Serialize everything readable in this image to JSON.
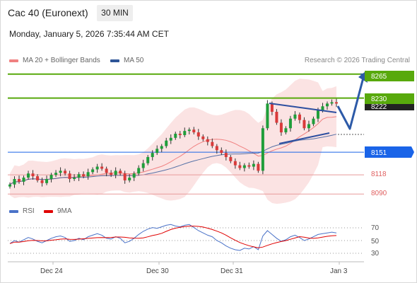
{
  "header": {
    "instrument": "Cac 40 (Euronext)",
    "timeframe": "30 MIN",
    "datetime": "Monday, January 5, 2026 7:35:44 AM CET"
  },
  "legend": {
    "bollinger": {
      "label": "MA 20 + Bollinger Bands",
      "color": "#f08080"
    },
    "ma50": {
      "label": "MA 50",
      "color": "#2e5597"
    },
    "rsi": {
      "label": "RSI",
      "color": "#4a72c8"
    },
    "rsi_ma": {
      "label": "9MA",
      "color": "#e00000"
    }
  },
  "credit": "Research © 2026 Trading Central",
  "price_levels": [
    {
      "value": "8265",
      "kind": "target",
      "color": "#58a90c"
    },
    {
      "value": "8230",
      "kind": "resistance",
      "color": "#58a90c"
    },
    {
      "value": "8222",
      "kind": "last",
      "color": "#222222"
    },
    {
      "value": "8151",
      "kind": "pivot",
      "color": "#1a64e8"
    },
    {
      "value": "8118",
      "kind": "support",
      "color": "#e06060"
    },
    {
      "value": "8090",
      "kind": "support",
      "color": "#e06060"
    }
  ],
  "rsi_axis": [
    "70",
    "50",
    "30"
  ],
  "x_axis": [
    "Dec 24",
    "Dec 30",
    "Dec 31",
    "Jan 3"
  ],
  "chart_data": {
    "type": "candlestick",
    "series": [
      {
        "name": "Price",
        "close": [
          8104,
          8112,
          8108,
          8114,
          8120,
          8116,
          8110,
          8106,
          8112,
          8118,
          8121,
          8124,
          8120,
          8112,
          8114,
          8119,
          8116,
          8122,
          8126,
          8130,
          8127,
          8121,
          8118,
          8124,
          8120,
          8110,
          8114,
          8120,
          8128,
          8135,
          8144,
          8150,
          8156,
          8160,
          8168,
          8172,
          8178,
          8176,
          8182,
          8184,
          8180,
          8174,
          8170,
          8166,
          8160,
          8154,
          8150,
          8144,
          8138,
          8132,
          8128,
          8132,
          8130,
          8134,
          8124,
          8186,
          8222,
          8210,
          8194,
          8180,
          8186,
          8200,
          8206,
          8198,
          8186,
          8192,
          8200,
          8212,
          8218,
          8222,
          8224,
          8222
        ]
      },
      {
        "name": "MA 20 + Bollinger Bands"
      },
      {
        "name": "MA 50"
      }
    ],
    "levels": [
      8265,
      8230,
      8151,
      8118,
      8090
    ],
    "ylim": [
      8080,
      8275
    ],
    "rsi": {
      "name": "RSI",
      "ma_name": "9MA",
      "values": [
        46,
        50,
        48,
        51,
        54,
        52,
        49,
        47,
        50,
        53,
        55,
        56,
        54,
        49,
        50,
        53,
        51,
        55,
        57,
        59,
        57,
        53,
        52,
        55,
        53,
        47,
        49,
        53,
        58,
        62,
        65,
        67,
        66,
        68,
        70,
        71,
        69,
        68,
        70,
        71,
        67,
        63,
        60,
        57,
        55,
        50,
        47,
        43,
        40,
        38,
        37,
        40,
        39,
        42,
        38,
        56,
        63,
        58,
        53,
        49,
        51,
        55,
        57,
        54,
        50,
        52,
        55,
        58,
        59,
        60,
        61,
        60
      ],
      "ylim": [
        25,
        75
      ]
    }
  }
}
